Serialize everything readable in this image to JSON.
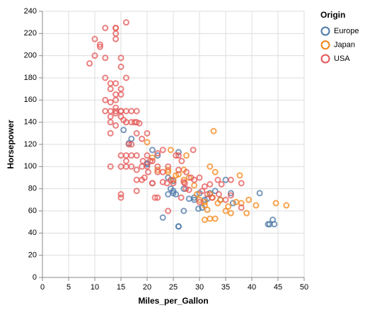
{
  "chart_data": {
    "type": "scatter",
    "x_label": "Miles_per_Gallon",
    "y_label": "Horsepower",
    "legend_title": "Origin",
    "legend": "top-right",
    "xlim": [
      0,
      50
    ],
    "xticks": [
      0,
      5,
      10,
      15,
      20,
      25,
      30,
      35,
      40,
      45,
      50
    ],
    "ylim": [
      0,
      240
    ],
    "yticks": [
      0,
      20,
      40,
      60,
      80,
      100,
      120,
      140,
      160,
      180,
      200,
      220,
      240
    ],
    "grid": true,
    "series": [
      {
        "name": "Europe",
        "color": "#4c78a8",
        "x": [
          26,
          26,
          25,
          24,
          44.3,
          43.4,
          44,
          43.1,
          41.5,
          36.4,
          29,
          29.8,
          31,
          23,
          27,
          15.5,
          16.5,
          20,
          21,
          22,
          25,
          32,
          36,
          24,
          25,
          28,
          30,
          34,
          35,
          26,
          17,
          20,
          29,
          33,
          30.5,
          31.5,
          27,
          24.5,
          25.5
        ],
        "values": [
          46,
          46,
          87,
          90,
          48,
          48,
          52,
          48,
          76,
          67,
          70,
          62,
          70,
          54,
          60,
          133,
          121,
          103,
          115,
          110,
          78,
          76,
          76,
          75,
          76,
          71,
          76,
          70,
          88,
          113,
          125,
          102,
          72,
          78,
          63,
          71,
          80,
          80,
          75
        ]
      },
      {
        "name": "Japan",
        "color": "#f58518",
        "x": [
          32.7,
          46.6,
          44.6,
          40.8,
          39.4,
          33,
          32,
          31,
          35,
          37,
          38,
          31,
          27,
          24,
          22,
          20,
          21,
          25,
          32,
          33,
          37.7,
          29,
          32,
          31,
          27,
          26,
          24,
          34,
          31.5,
          36,
          39,
          27.5,
          29.5,
          33.5,
          28,
          25.5,
          32.5,
          35.5,
          30,
          24.5
        ],
        "values": [
          132,
          65,
          67,
          65,
          70,
          53,
          53,
          52,
          60,
          68,
          67,
          65,
          97,
          95,
          97,
          122,
          108,
          88,
          100,
          95,
          92,
          83,
          75,
          68,
          88,
          93,
          97,
          70,
          61,
          58,
          58,
          110,
          75,
          67,
          90,
          92,
          72,
          64,
          70,
          115
        ]
      },
      {
        "name": "USA",
        "color": "#e45756",
        "x": [
          18,
          15,
          18,
          16,
          17,
          15,
          14,
          14,
          14,
          15,
          15,
          14,
          15,
          14,
          22,
          18,
          21,
          10,
          10,
          11,
          9,
          19,
          16,
          17,
          19,
          14,
          14,
          14,
          14,
          12,
          13,
          13,
          18,
          22,
          18,
          23,
          11,
          12,
          13,
          12,
          18,
          20,
          21,
          15,
          16,
          24.5,
          26,
          25.5,
          30.5,
          33.5,
          30,
          27.2,
          17.6,
          15.5,
          19.2,
          18.5,
          20.2,
          20.6,
          16.5,
          17,
          13,
          13,
          12,
          16,
          13,
          14,
          13,
          14,
          16,
          20,
          26.6,
          23.8,
          23,
          27.4,
          34.2,
          28.4,
          28.8,
          33.7,
          32.4,
          36,
          38,
          36,
          28,
          31,
          32,
          27,
          38,
          15,
          24,
          16,
          17,
          19,
          21,
          25,
          26.5,
          22,
          20,
          16,
          15,
          18,
          19.5,
          21.5,
          23,
          17,
          15,
          15,
          13,
          15,
          12,
          22,
          27.5,
          24,
          31.5,
          35,
          29,
          30,
          26
        ],
        "values": [
          130,
          165,
          150,
          150,
          140,
          198,
          220,
          215,
          225,
          190,
          170,
          160,
          150,
          225,
          95,
          97,
          85,
          215,
          200,
          210,
          193,
          100,
          105,
          100,
          88,
          165,
          175,
          153,
          150,
          180,
          170,
          175,
          110,
          72,
          88,
          86,
          208,
          198,
          150,
          160,
          140,
          100,
          105,
          150,
          180,
          88,
          110,
          110,
          78,
          88,
          90,
          85,
          140,
          142,
          105,
          139,
          95,
          105,
          120,
          150,
          145,
          130,
          225,
          230,
          140,
          137,
          158,
          148,
          100,
          110,
          105,
          85,
          115,
          80,
          84,
          90,
          115,
          75,
          72,
          88,
          85,
          74,
          79,
          82,
          84,
          86,
          63,
          72,
          60,
          110,
          110,
          125,
          85,
          85,
          72,
          112,
          130,
          140,
          145,
          78,
          90,
          72,
          95,
          120,
          100,
          110,
          100,
          75,
          150,
          100,
          95,
          100,
          75,
          70,
          88,
          68,
          97
        ]
      }
    ]
  }
}
